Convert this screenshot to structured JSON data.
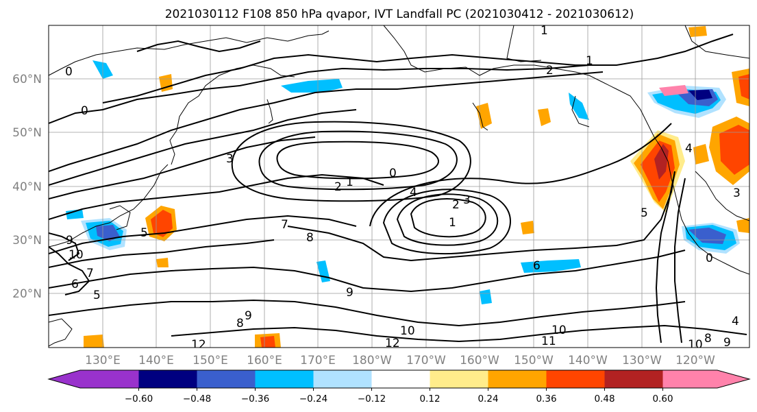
{
  "title": "2021030112 F108 850 hPa qvapor, IVT Landfall PC (2021030412 - 2021030612)",
  "map": {
    "lat_labels": [
      "60°N",
      "50°N",
      "40°N",
      "30°N",
      "20°N"
    ],
    "lon_labels": [
      "130°E",
      "140°E",
      "150°E",
      "160°E",
      "170°E",
      "180°W",
      "170°W",
      "160°W",
      "150°W",
      "140°W",
      "130°W",
      "120°W"
    ],
    "contour_labels": [
      "1",
      "2",
      "1",
      "0",
      "0",
      "3",
      "0",
      "2",
      "1",
      "4",
      "2",
      "3",
      "1",
      "7",
      "8",
      "9",
      "9",
      "10",
      "7",
      "6",
      "5",
      "9",
      "8",
      "10",
      "12",
      "12",
      "10",
      "11",
      "6",
      "5",
      "5",
      "4",
      "3",
      "0",
      "10",
      "8",
      "9",
      "4"
    ]
  },
  "colorbar": {
    "tick_labels": [
      "−0.60",
      "−0.48",
      "−0.36",
      "−0.24",
      "−0.12",
      "0.12",
      "0.24",
      "0.36",
      "0.48",
      "0.60"
    ],
    "colors": [
      "#9932cc",
      "#000080",
      "#3a5fcd",
      "#00bfff",
      "#b0e2ff",
      "#ffffff",
      "#ffec8b",
      "#ffa500",
      "#ff4500",
      "#b22222",
      "#ff82ab"
    ]
  }
}
